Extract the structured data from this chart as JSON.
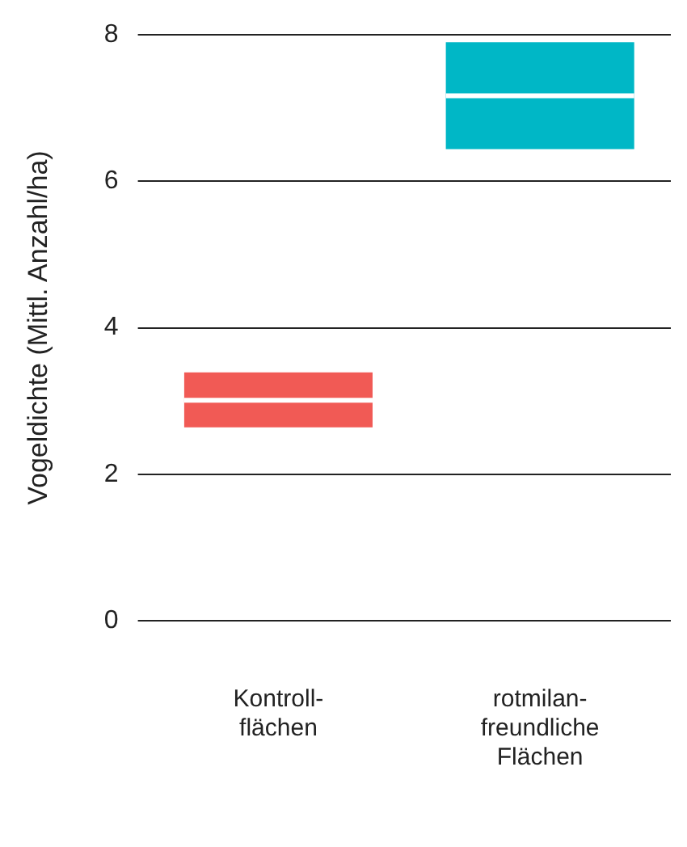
{
  "chart_data": {
    "type": "box",
    "ylabel": "Vogeldichte (Mittl. Anzahl/ha)",
    "categories": [
      "Kontroll-\nflächen",
      "rotmilan-\nfreundliche\nFlächen"
    ],
    "boxes": [
      {
        "low": 2.64,
        "q1": 2.64,
        "median": 3.01,
        "q3": 3.39,
        "high": 3.39
      },
      {
        "low": 6.44,
        "q1": 6.44,
        "median": 7.17,
        "q3": 7.9,
        "high": 7.9
      }
    ],
    "colors": [
      "#f15a55",
      "#00b7c6"
    ],
    "ylim": [
      0,
      8
    ],
    "yticks": [
      0,
      2,
      4,
      6,
      8
    ],
    "grid": "y",
    "legend": false
  }
}
